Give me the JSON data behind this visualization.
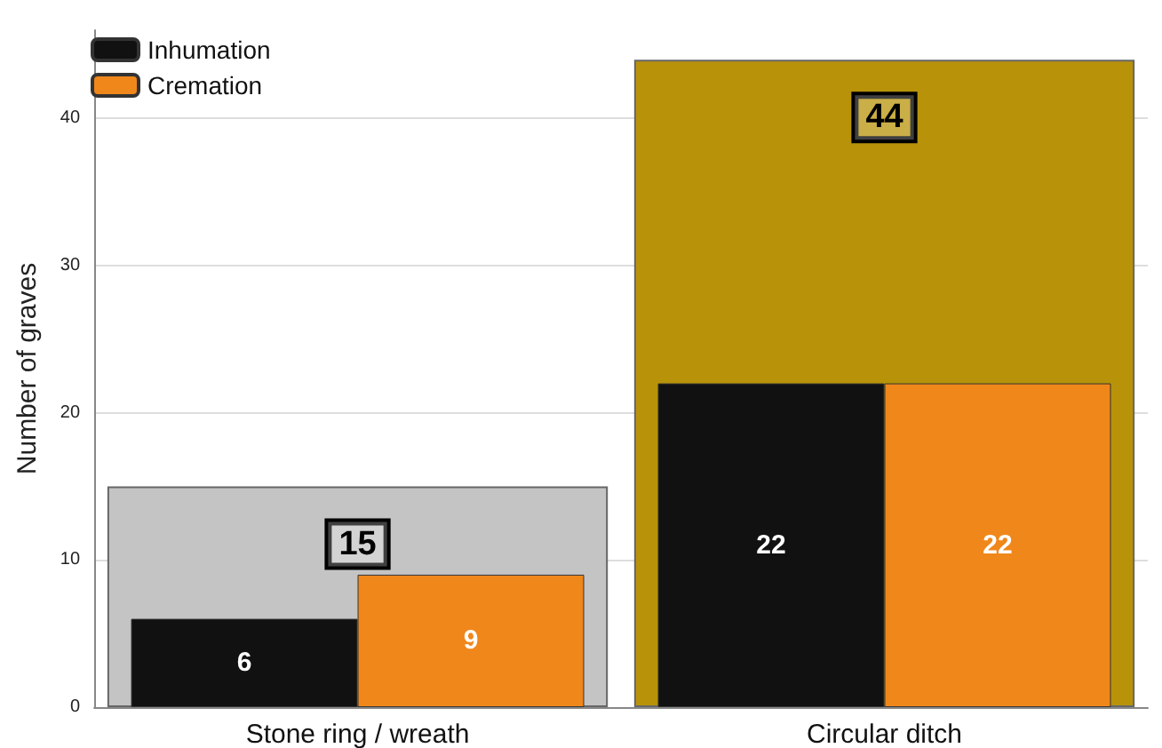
{
  "chart_data": {
    "type": "bar",
    "ylabel": "Number of graves",
    "categories": [
      "Stone ring / wreath",
      "Circular ditch"
    ],
    "series": [
      {
        "name": "Inhumation",
        "color": "#111111",
        "values": [
          6,
          22
        ]
      },
      {
        "name": "Cremation",
        "color": "#f0871a",
        "values": [
          9,
          22
        ]
      },
      {
        "colors": [
          "#c4c4c4",
          "#b8930a"
        ],
        "values": [
          15,
          44
        ]
      }
    ],
    "ylim": [
      0,
      46
    ],
    "yticks": [
      0,
      10,
      20,
      30,
      40
    ],
    "grid": "y",
    "legend": "top left",
    "data_labels": true
  }
}
